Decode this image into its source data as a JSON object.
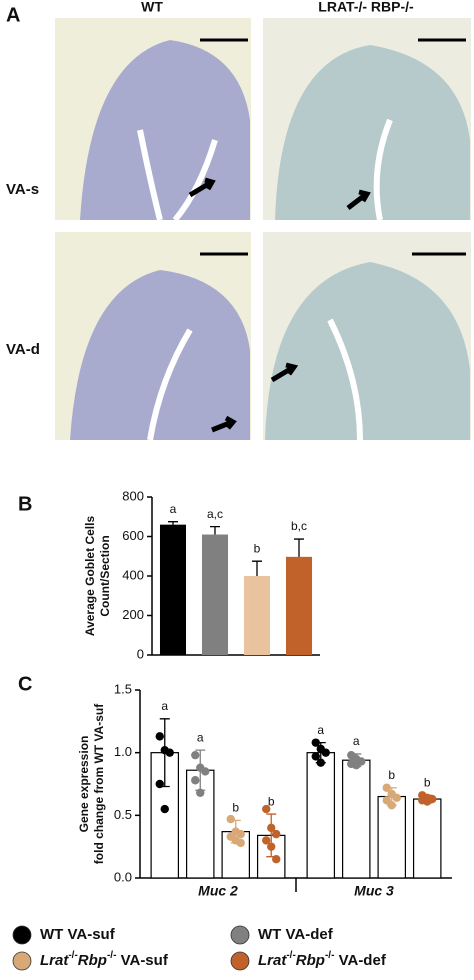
{
  "panel_a": {
    "label": "A",
    "columns": [
      "WT",
      "LRAT-/- RBP-/-"
    ],
    "rows": [
      "VA-s",
      "VA-d"
    ]
  },
  "chart_data": [
    {
      "type": "bar",
      "panel": "B",
      "ylabel": [
        "Average Goblet Cells",
        "Count/Section"
      ],
      "categories": [
        null,
        null,
        null,
        null
      ],
      "values": [
        660,
        610,
        400,
        497
      ],
      "errors": [
        15,
        40,
        75,
        90
      ],
      "colors": [
        "#000000",
        "#808080",
        "#e9c39d",
        "#c0622a"
      ],
      "annotations": [
        "a",
        "a,c",
        "b",
        "b,c"
      ],
      "ylim": [
        0,
        800
      ],
      "yticks": [
        0,
        200,
        400,
        600,
        800
      ]
    },
    {
      "type": "bar",
      "panel": "C",
      "ylabel": [
        "Gene expression",
        "fold change from WT VA-suf"
      ],
      "categories": [
        "Muc 2",
        "Muc 3"
      ],
      "ylim": [
        0,
        1.5
      ],
      "yticks": [
        {
          "value": 0,
          "label": "0.0"
        },
        0.5,
        {
          "value": 1,
          "label": "1.0"
        },
        1.5
      ],
      "series": [
        {
          "name": "WT VA-suf",
          "color": "#000000",
          "values": [
            1.0,
            1.0
          ],
          "errors": [
            0.27,
            0.08
          ],
          "annotations": [
            "a",
            "a"
          ],
          "points": [
            [
              1.13,
              1.02,
              1.0,
              0.75,
              0.55
            ],
            [
              1.08,
              1.03,
              1.0,
              0.97,
              0.92
            ]
          ]
        },
        {
          "name": "WT VA-def",
          "color": "#808080",
          "values": [
            0.86,
            0.94
          ],
          "errors": [
            0.16,
            0.05
          ],
          "annotations": [
            "a",
            "a"
          ],
          "points": [
            [
              0.98,
              0.88,
              0.85,
              0.78,
              0.68
            ],
            [
              0.98,
              0.95,
              0.93,
              0.91,
              0.9
            ]
          ]
        },
        {
          "name": "Lrat-/-Rbp-/- VA-suf",
          "color": "#d9a877",
          "values": [
            0.37,
            0.65
          ],
          "errors": [
            0.09,
            0.07
          ],
          "annotations": [
            "b",
            "b"
          ],
          "points": [
            [
              0.47,
              0.37,
              0.35,
              0.33,
              0.3,
              0.28
            ],
            [
              0.72,
              0.67,
              0.64,
              0.62,
              0.58
            ]
          ]
        },
        {
          "name": "Lrat-/-Rbp-/- VA-def",
          "color": "#c0622a",
          "values": [
            0.34,
            0.63
          ],
          "errors": [
            0.17,
            0.03
          ],
          "annotations": [
            "b",
            "b"
          ],
          "points": [
            [
              0.55,
              0.4,
              0.35,
              0.3,
              0.25,
              0.15
            ],
            [
              0.66,
              0.64,
              0.63,
              0.62,
              0.61
            ]
          ]
        }
      ]
    }
  ]
}
